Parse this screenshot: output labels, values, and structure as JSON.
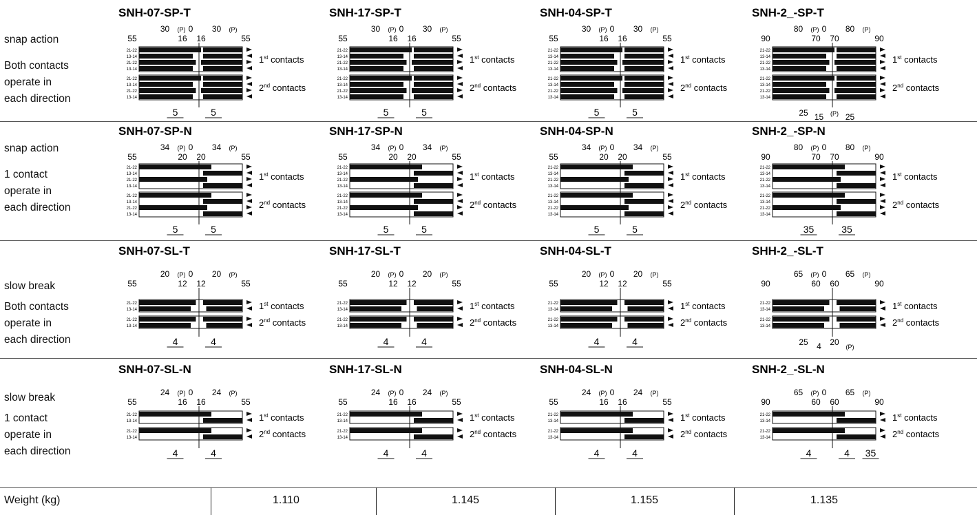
{
  "rows": [
    {
      "desc": [
        "snap action",
        "Both contacts",
        "operate in",
        "each direction"
      ]
    },
    {
      "desc": [
        "snap action",
        "1 contact",
        "operate in",
        "each direction"
      ]
    },
    {
      "desc": [
        "slow break",
        "Both contacts",
        "operate in",
        "each direction"
      ]
    },
    {
      "desc": [
        "slow break",
        "1 contact",
        "operate in",
        "each direction"
      ]
    }
  ],
  "diagrams": [
    [
      {
        "title": "SNH-07-SP-T",
        "angles": {
          "outer": "55",
          "pre": "30",
          "mid": "16",
          "pp": "(P)",
          "zero": "0"
        },
        "travel": [
          "5",
          "5"
        ],
        "extra": []
      },
      {
        "title": "SNH-17-SP-T",
        "angles": {
          "outer": "55",
          "pre": "30",
          "mid": "16",
          "pp": "(P)",
          "zero": "0"
        },
        "travel": [
          "5",
          "5"
        ],
        "extra": []
      },
      {
        "title": "SNH-04-SP-T",
        "angles": {
          "outer": "55",
          "pre": "30",
          "mid": "16",
          "pp": "(P)",
          "zero": "0"
        },
        "travel": [
          "5",
          "5"
        ],
        "extra": []
      },
      {
        "title": "SNH-2_-SP-T",
        "angles": {
          "outer": "90",
          "pre": "80",
          "mid": "70",
          "pp": "(P)",
          "zero": "0"
        },
        "travel": [],
        "extra": [
          "25",
          "15",
          "(P)",
          "25"
        ]
      }
    ],
    [
      {
        "title": "SNH-07-SP-N",
        "angles": {
          "outer": "55",
          "pre": "34",
          "mid": "20",
          "pp": "(P)",
          "zero": "0"
        },
        "travel": [
          "5",
          "5"
        ],
        "extra": []
      },
      {
        "title": "SNH-17-SP-N",
        "angles": {
          "outer": "55",
          "pre": "34",
          "mid": "20",
          "pp": "(P)",
          "zero": "0"
        },
        "travel": [
          "5",
          "5"
        ],
        "extra": []
      },
      {
        "title": "SNH-04-SP-N",
        "angles": {
          "outer": "55",
          "pre": "34",
          "mid": "20",
          "pp": "(P)",
          "zero": "0"
        },
        "travel": [
          "5",
          "5"
        ],
        "extra": []
      },
      {
        "title": "SNH-2_-SP-N",
        "angles": {
          "outer": "90",
          "pre": "80",
          "mid": "70",
          "pp": "(P)",
          "zero": "0"
        },
        "travel": [
          "35",
          "35"
        ],
        "extra": []
      }
    ],
    [
      {
        "title": "SNH-07-SL-T",
        "angles": {
          "outer": "55",
          "pre": "20",
          "mid": "12",
          "pp": "(P)",
          "zero": "0"
        },
        "travel": [
          "4",
          "4"
        ],
        "extra": []
      },
      {
        "title": "SNH-17-SL-T",
        "angles": {
          "outer": "55",
          "pre": "20",
          "mid": "12",
          "pp": "(P)",
          "zero": "0"
        },
        "travel": [
          "4",
          "4"
        ],
        "extra": []
      },
      {
        "title": "SNH-04-SL-T",
        "angles": {
          "outer": "55",
          "pre": "20",
          "mid": "12",
          "pp": "(P)",
          "zero": "0"
        },
        "travel": [
          "4",
          "4"
        ],
        "extra": []
      },
      {
        "title": "SHH-2_-SL-T",
        "angles": {
          "outer": "90",
          "pre": "65",
          "mid": "60",
          "pp": "(P)",
          "zero": "0"
        },
        "travel": [],
        "extra": [
          "25",
          "4",
          "20",
          "(P)"
        ]
      }
    ],
    [
      {
        "title": "SNH-07-SL-N",
        "angles": {
          "outer": "55",
          "pre": "24",
          "mid": "16",
          "pp": "(P)",
          "zero": "0"
        },
        "travel": [
          "4",
          "4"
        ],
        "extra": []
      },
      {
        "title": "SNH-17-SL-N",
        "angles": {
          "outer": "55",
          "pre": "24",
          "mid": "16",
          "pp": "(P)",
          "zero": "0"
        },
        "travel": [
          "4",
          "4"
        ],
        "extra": []
      },
      {
        "title": "SNH-04-SL-N",
        "angles": {
          "outer": "55",
          "pre": "24",
          "mid": "16",
          "pp": "(P)",
          "zero": "0"
        },
        "travel": [
          "4",
          "4"
        ],
        "extra": []
      },
      {
        "title": "SNH-2_-SL-N",
        "angles": {
          "outer": "90",
          "pre": "65",
          "mid": "60",
          "pp": "(P)",
          "zero": "0"
        },
        "travel": [
          "4",
          "4",
          "35"
        ],
        "extra": []
      }
    ]
  ],
  "contact_labels": {
    "first": {
      "num": "1",
      "sup": "st",
      "word": "contacts"
    },
    "second": {
      "num": "2",
      "sup": "nd",
      "word": "contacts"
    },
    "pins": {
      "a": "21-22",
      "b": "13-14"
    }
  },
  "weight": {
    "label": "Weight (kg)",
    "values": [
      "1.110",
      "1.145",
      "1.155",
      "1.135"
    ]
  }
}
